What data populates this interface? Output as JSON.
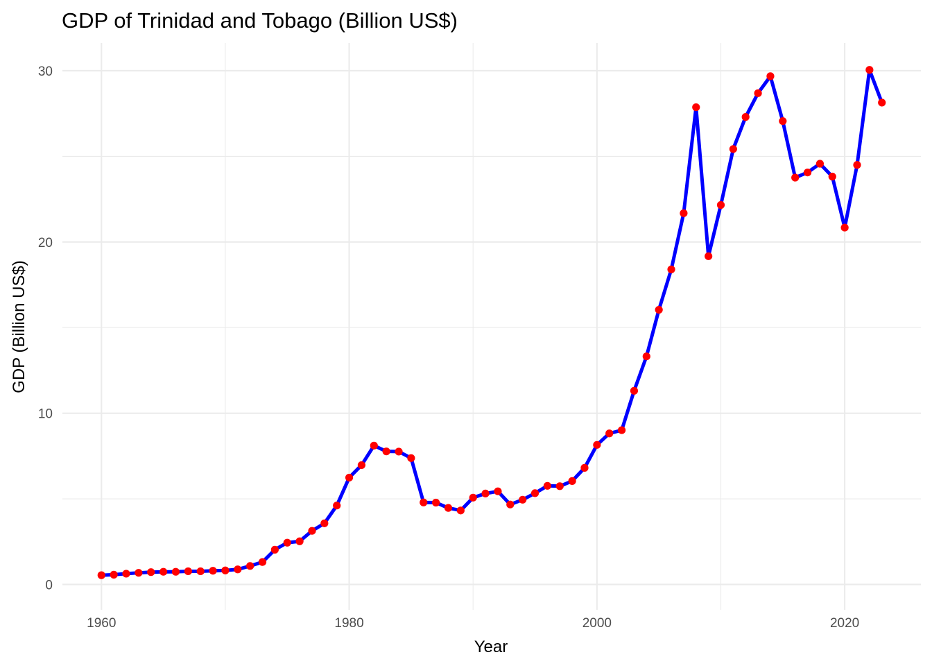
{
  "chart_data": {
    "type": "line",
    "title": "GDP of Trinidad and Tobago (Billion US$)",
    "xlabel": "Year",
    "ylabel": "GDP (Billion US$)",
    "x_ticks": [
      1960,
      1980,
      2000,
      2020
    ],
    "y_ticks": [
      0,
      10,
      20,
      30
    ],
    "xlim": [
      1956.85,
      2026.15
    ],
    "ylim": [
      -1.48,
      31.62
    ],
    "grid": true,
    "line_color": "#0000ff",
    "point_color": "#ff0000",
    "series": [
      {
        "x": [
          1960,
          1961,
          1962,
          1963,
          1964,
          1965,
          1966,
          1967,
          1968,
          1969,
          1970,
          1971,
          1972,
          1973,
          1974,
          1975,
          1976,
          1977,
          1978,
          1979,
          1980,
          1981,
          1982,
          1983,
          1984,
          1985,
          1986,
          1987,
          1988,
          1989,
          1990,
          1991,
          1992,
          1993,
          1994,
          1995,
          1996,
          1997,
          1998,
          1999,
          2000,
          2001,
          2002,
          2003,
          2004,
          2005,
          2006,
          2007,
          2008,
          2009,
          2010,
          2011,
          2012,
          2013,
          2014,
          2015,
          2016,
          2017,
          2018,
          2019,
          2020,
          2021,
          2022,
          2023
        ],
        "values": [
          0.54,
          0.57,
          0.63,
          0.68,
          0.72,
          0.74,
          0.74,
          0.77,
          0.77,
          0.8,
          0.82,
          0.88,
          1.08,
          1.31,
          2.03,
          2.44,
          2.52,
          3.13,
          3.57,
          4.61,
          6.24,
          6.97,
          8.11,
          7.77,
          7.76,
          7.38,
          4.79,
          4.78,
          4.47,
          4.32,
          5.07,
          5.31,
          5.44,
          4.67,
          4.95,
          5.33,
          5.76,
          5.74,
          6.04,
          6.81,
          8.15,
          8.82,
          9.01,
          11.31,
          13.32,
          16.04,
          18.4,
          21.68,
          27.87,
          19.17,
          22.16,
          25.43,
          27.3,
          28.69,
          29.68,
          27.06,
          23.76,
          24.06,
          24.57,
          23.82,
          20.84,
          24.5,
          30.05,
          28.14
        ]
      }
    ]
  }
}
